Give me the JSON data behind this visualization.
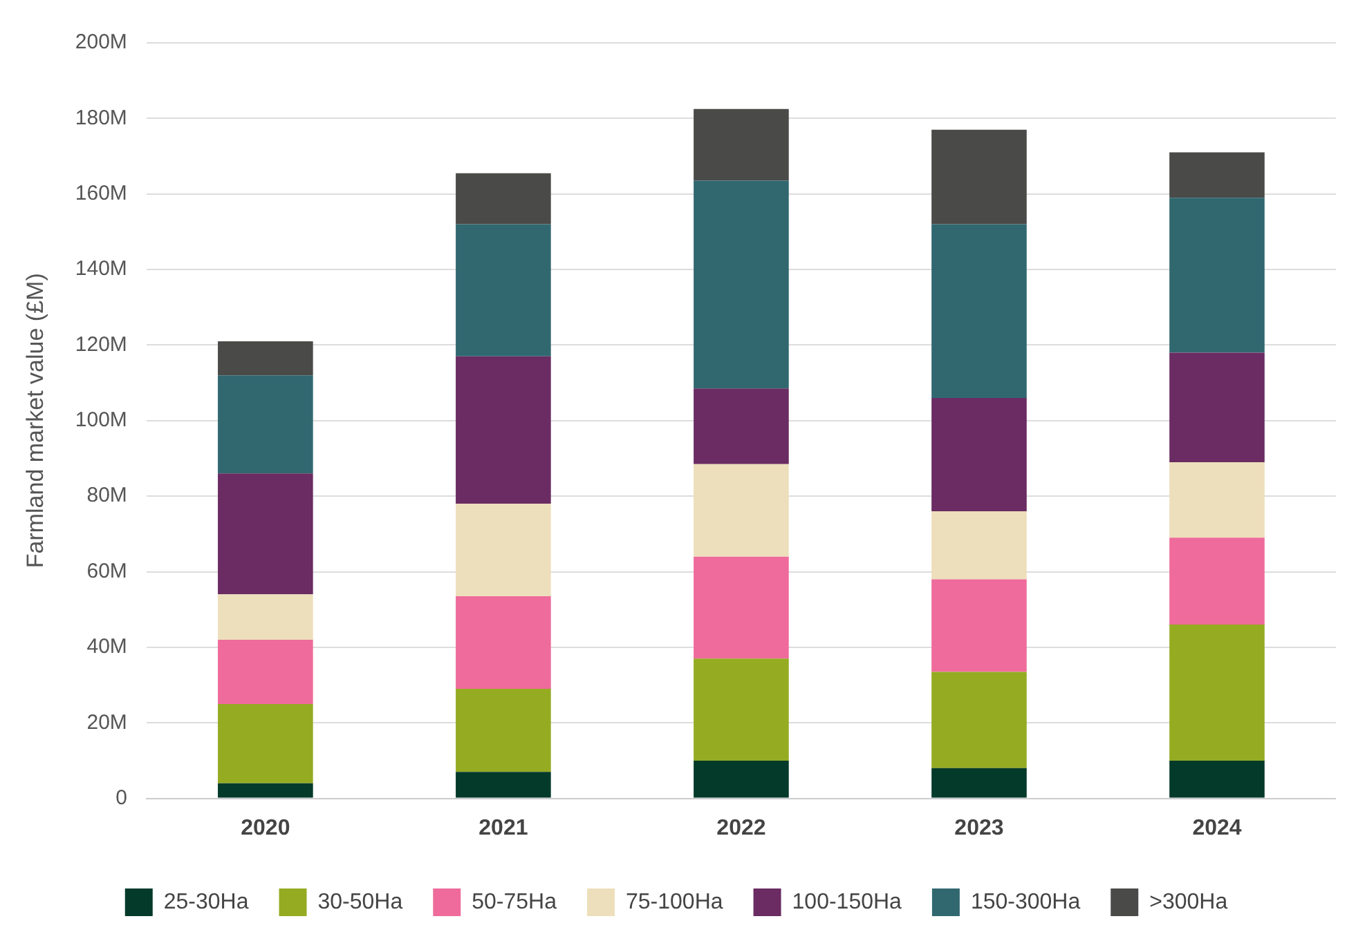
{
  "chart_data": {
    "type": "bar",
    "stacked": true,
    "ylabel": "Farmland market value (£M)",
    "categories": [
      "2020",
      "2021",
      "2022",
      "2023",
      "2024"
    ],
    "series": [
      {
        "name": "25-30Ha",
        "color": "#033a2a",
        "values": [
          4,
          7,
          10,
          8,
          10
        ]
      },
      {
        "name": "30-50Ha",
        "color": "#95ab22",
        "values": [
          21,
          22,
          27,
          25.5,
          36
        ]
      },
      {
        "name": "50-75Ha",
        "color": "#ee6b9b",
        "values": [
          17,
          24.5,
          27,
          24.5,
          23
        ]
      },
      {
        "name": "75-100Ha",
        "color": "#eddfbb",
        "values": [
          12,
          24.5,
          24.5,
          18,
          20
        ]
      },
      {
        "name": "100-150Ha",
        "color": "#6a2c62",
        "values": [
          32,
          39,
          20,
          30,
          29
        ]
      },
      {
        "name": "150-300Ha",
        "color": "#316870",
        "values": [
          26,
          35,
          55,
          46,
          41
        ]
      },
      {
        "name": ">300Ha",
        "color": "#4a4a48",
        "values": [
          9,
          13.5,
          19,
          25,
          12
        ]
      }
    ],
    "ylim": [
      0,
      200
    ],
    "yticks": [
      0,
      {
        "value": 20,
        "label": "20M"
      },
      {
        "value": 40,
        "label": "40M"
      },
      {
        "value": 60,
        "label": "60M"
      },
      {
        "value": 80,
        "label": "80M"
      },
      {
        "value": 100,
        "label": "100M"
      },
      {
        "value": 120,
        "label": "120M"
      },
      {
        "value": 140,
        "label": "140M"
      },
      {
        "value": 160,
        "label": "160M"
      },
      {
        "value": 180,
        "label": "180M"
      },
      {
        "value": 200,
        "label": "200M"
      }
    ],
    "grid": "y",
    "legend": "bottom"
  }
}
